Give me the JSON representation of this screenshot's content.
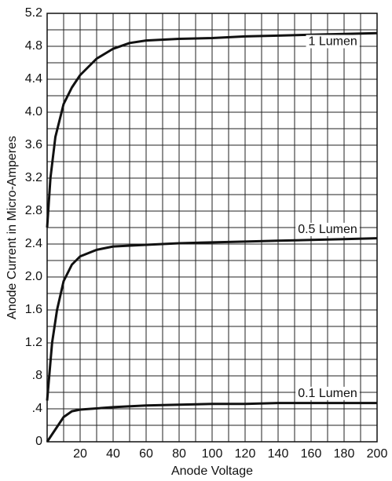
{
  "chart_data": {
    "type": "line",
    "xlabel": "Anode Voltage",
    "ylabel": "Anode Current in Micro-Amperes",
    "xlim": [
      0,
      200
    ],
    "ylim": [
      0,
      5.2
    ],
    "xticks": [
      20,
      40,
      60,
      80,
      100,
      120,
      140,
      160,
      180,
      200
    ],
    "yticks": [
      0,
      {
        "value": 0.4,
        "label": ".4"
      },
      {
        "value": 0.8,
        "label": ".8"
      },
      1.2,
      1.6,
      {
        "value": 2.0,
        "label": "2.0"
      },
      2.4,
      2.8,
      3.2,
      3.6,
      {
        "value": 4.0,
        "label": "4.0"
      },
      4.4,
      4.8,
      5.2
    ],
    "xgrid": [
      10,
      30,
      50,
      70,
      90,
      110,
      130,
      150,
      170,
      190
    ],
    "ygrid": [
      0.2,
      0.6,
      1.0,
      1.4,
      1.8,
      2.2,
      2.6,
      3.0,
      3.4,
      3.8,
      4.2,
      4.6,
      5.0
    ],
    "grid": true,
    "series": [
      {
        "name": "1 Lumen",
        "color": "#111111",
        "x": [
          0,
          2,
          5,
          10,
          15,
          20,
          30,
          40,
          50,
          60,
          80,
          100,
          120,
          140,
          160,
          180,
          200
        ],
        "values": [
          2.6,
          3.2,
          3.7,
          4.1,
          4.3,
          4.45,
          4.65,
          4.77,
          4.84,
          4.87,
          4.89,
          4.9,
          4.92,
          4.93,
          4.94,
          4.95,
          4.96
        ]
      },
      {
        "name": "0.5 Lumen",
        "color": "#111111",
        "x": [
          0,
          3,
          6,
          10,
          15,
          20,
          30,
          40,
          60,
          80,
          100,
          120,
          140,
          160,
          180,
          200
        ],
        "values": [
          0.5,
          1.2,
          1.6,
          1.95,
          2.15,
          2.25,
          2.33,
          2.37,
          2.39,
          2.41,
          2.42,
          2.43,
          2.44,
          2.45,
          2.46,
          2.47
        ]
      },
      {
        "name": "0.1 Lumen",
        "color": "#111111",
        "x": [
          0,
          5,
          10,
          15,
          20,
          40,
          60,
          80,
          100,
          120,
          140,
          160,
          180,
          200
        ],
        "values": [
          0,
          0.15,
          0.3,
          0.37,
          0.39,
          0.42,
          0.44,
          0.45,
          0.46,
          0.46,
          0.47,
          0.47,
          0.47,
          0.47
        ]
      }
    ]
  }
}
